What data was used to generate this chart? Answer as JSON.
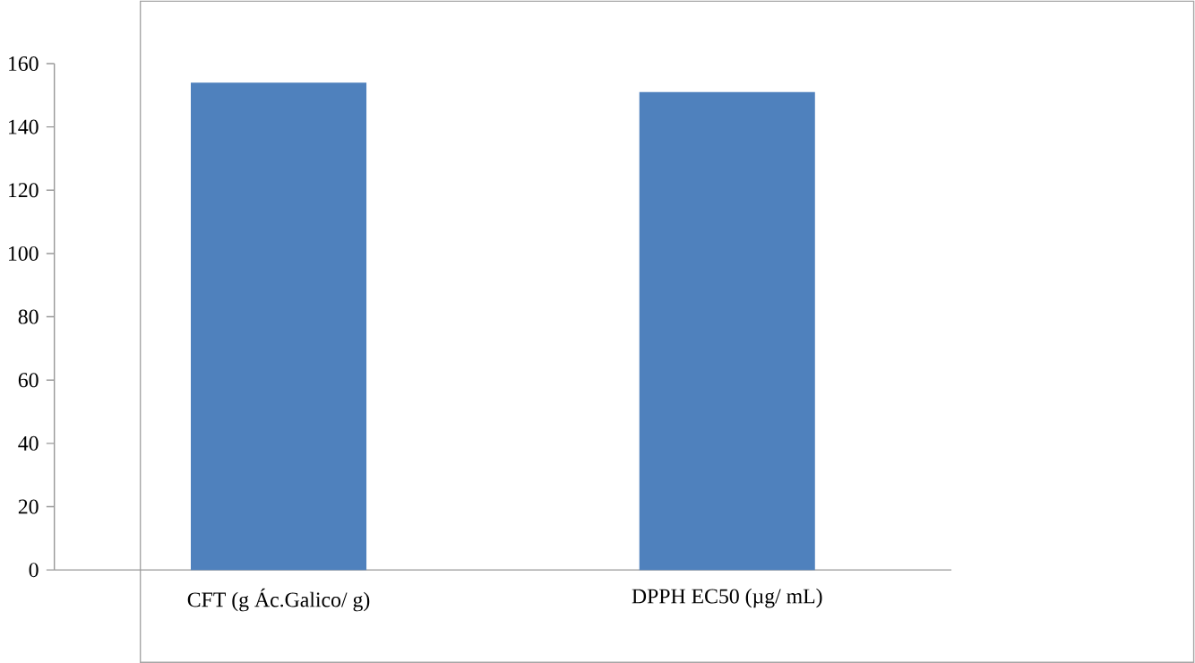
{
  "chart_data": {
    "type": "bar",
    "categories": [
      "CFT (g Ác.Galico/ g)",
      "DPPH EC50 (µg/ mL)"
    ],
    "values": [
      154,
      151
    ],
    "color": "#4f81bd",
    "ylim": [
      0,
      160
    ],
    "yticks": [
      0,
      20,
      40,
      60,
      80,
      100,
      120,
      140,
      160
    ]
  }
}
